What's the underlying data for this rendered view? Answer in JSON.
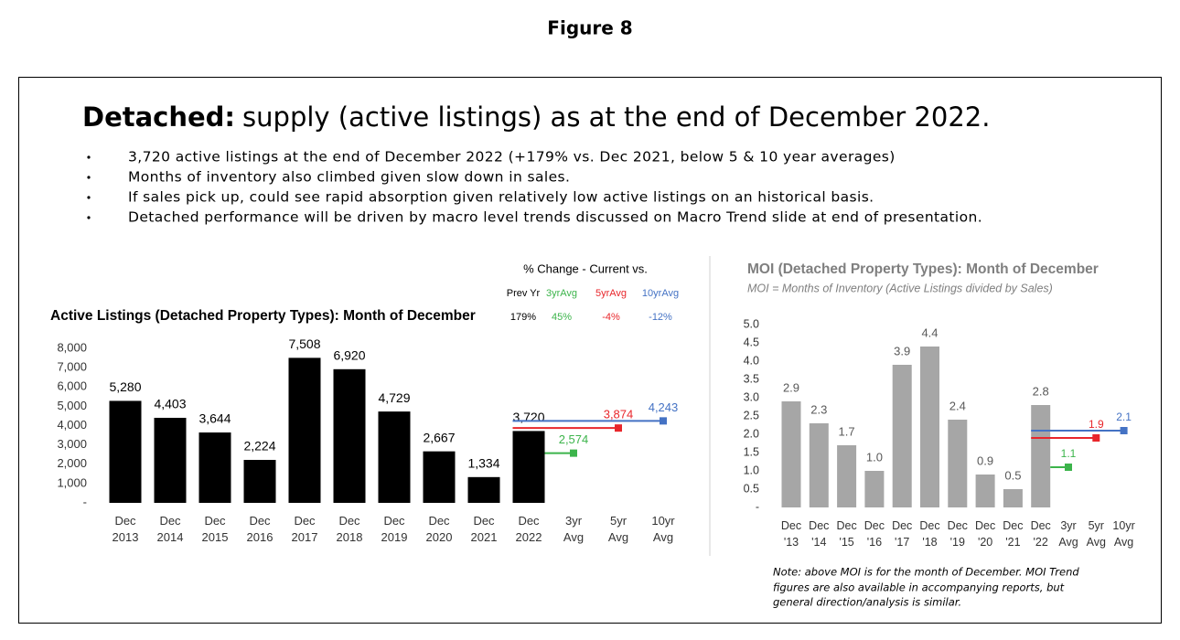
{
  "figure_caption": "Figure 8",
  "heading": {
    "bold": "Detached:",
    "rest": "supply (active listings) as at the end of December 2022."
  },
  "bullets": [
    "3,720 active listings at the end of December 2022 (+179% vs. Dec 2021, below 5 & 10 year averages)",
    "Months of inventory also climbed given slow down in sales.",
    "If sales pick up, could see rapid absorption given relatively low active listings on an historical basis.",
    "Detached performance will be driven by macro level trends discussed on Macro Trend slide at end of presentation."
  ],
  "note": [
    "Note: above MOI is for the month of December.  MOI Trend",
    "figures are also available in accompanying reports, but",
    "general direction/analysis is similar."
  ],
  "chart_data": [
    {
      "type": "bar",
      "title": "Active Listings (Detached Property Types): Month of December",
      "color": "#000000",
      "categories": [
        [
          "Dec",
          "2013"
        ],
        [
          "Dec",
          "2014"
        ],
        [
          "Dec",
          "2015"
        ],
        [
          "Dec",
          "2016"
        ],
        [
          "Dec",
          "2017"
        ],
        [
          "Dec",
          "2018"
        ],
        [
          "Dec",
          "2019"
        ],
        [
          "Dec",
          "2020"
        ],
        [
          "Dec",
          "2021"
        ],
        [
          "Dec",
          "2022"
        ]
      ],
      "values": [
        5280,
        4403,
        3644,
        2224,
        7508,
        6920,
        4729,
        2667,
        1334,
        3720
      ],
      "value_labels": [
        "5,280",
        "4,403",
        "3,644",
        "2,224",
        "7,508",
        "6,920",
        "4,729",
        "2,667",
        "1,334",
        "3,720"
      ],
      "averages": {
        "categories": [
          [
            "3yr",
            "Avg"
          ],
          [
            "5yr",
            "Avg"
          ],
          [
            "10yr",
            "Avg"
          ]
        ],
        "values": [
          2574,
          3874,
          4243
        ],
        "value_labels": [
          "2,574",
          "3,874",
          "4,243"
        ],
        "colors": [
          "#3cb44b",
          "#e8262b",
          "#4472c4"
        ]
      },
      "ylim": [
        0,
        8000
      ],
      "yticks": [
        {
          "value": 0,
          "label": "-"
        },
        {
          "value": 1000,
          "label": "1,000"
        },
        {
          "value": 2000,
          "label": "2,000"
        },
        {
          "value": 3000,
          "label": "3,000"
        },
        {
          "value": 4000,
          "label": "4,000"
        },
        {
          "value": 5000,
          "label": "5,000"
        },
        {
          "value": 6000,
          "label": "6,000"
        },
        {
          "value": 7000,
          "label": "7,000"
        },
        {
          "value": 8000,
          "label": "8,000"
        }
      ],
      "change_table": {
        "title": "% Change - Current vs.",
        "headers": [
          "Prev Yr",
          "3yrAvg",
          "5yrAvg",
          "10yrAvg"
        ],
        "values": [
          179,
          45,
          -4,
          -12
        ],
        "value_labels": [
          "179%",
          "45%",
          "-4%",
          "-12%"
        ],
        "colors": [
          "#000000",
          "#3cb44b",
          "#e8262b",
          "#4472c4"
        ]
      }
    },
    {
      "type": "bar",
      "title": "MOI (Detached Property Types): Month of December",
      "subtitle": "MOI = Months of Inventory (Active Listings divided by Sales)",
      "color": "#a6a6a6",
      "categories": [
        [
          "Dec",
          "'13"
        ],
        [
          "Dec",
          "'14"
        ],
        [
          "Dec",
          "'15"
        ],
        [
          "Dec",
          "'16"
        ],
        [
          "Dec",
          "'17"
        ],
        [
          "Dec",
          "'18"
        ],
        [
          "Dec",
          "'19"
        ],
        [
          "Dec",
          "'20"
        ],
        [
          "Dec",
          "'21"
        ],
        [
          "Dec",
          "'22"
        ]
      ],
      "values": [
        2.9,
        2.3,
        1.7,
        1.0,
        3.9,
        4.4,
        2.4,
        0.9,
        0.5,
        2.8
      ],
      "value_labels": [
        "2.9",
        "2.3",
        "1.7",
        "1.0",
        "3.9",
        "4.4",
        "2.4",
        "0.9",
        "0.5",
        "2.8"
      ],
      "averages": {
        "categories": [
          [
            "3yr",
            "Avg"
          ],
          [
            "5yr",
            "Avg"
          ],
          [
            "10yr",
            "Avg"
          ]
        ],
        "values": [
          1.1,
          1.9,
          2.1
        ],
        "value_labels": [
          "1.1",
          "1.9",
          "2.1"
        ],
        "colors": [
          "#3cb44b",
          "#e8262b",
          "#4472c4"
        ]
      },
      "ylim": [
        0,
        5
      ],
      "yticks": [
        {
          "value": 0,
          "label": "-"
        },
        0.5,
        {
          "value": 1,
          "label": "1.0"
        },
        1.5,
        {
          "value": 2,
          "label": "2.0"
        },
        2.5,
        {
          "value": 3,
          "label": "3.0"
        },
        3.5,
        {
          "value": 4,
          "label": "4.0"
        },
        4.5,
        {
          "value": 5,
          "label": "5.0"
        }
      ]
    }
  ]
}
